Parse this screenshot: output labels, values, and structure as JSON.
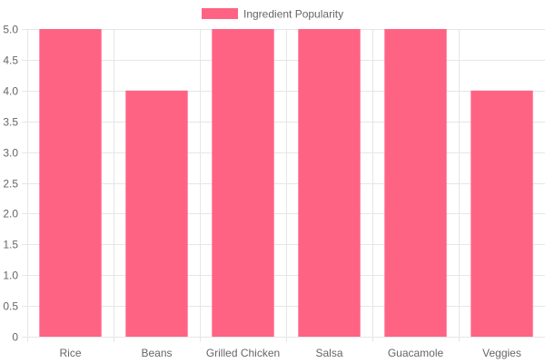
{
  "chart_data": {
    "type": "bar",
    "categories": [
      "Rice",
      "Beans",
      "Grilled Chicken",
      "Salsa",
      "Guacamole",
      "Veggies"
    ],
    "series": [
      {
        "name": "Ingredient Popularity",
        "values": [
          5,
          4,
          5,
          5,
          5,
          4
        ],
        "color": "#ff6384"
      }
    ],
    "ylim": [
      0,
      5
    ],
    "yticks": [
      "0",
      "0.5",
      "1.0",
      "1.5",
      "2.0",
      "2.5",
      "3.0",
      "3.5",
      "4.0",
      "4.5",
      "5.0"
    ],
    "grid": true,
    "legend_position": "top-center",
    "title": "",
    "xlabel": "",
    "ylabel": ""
  }
}
